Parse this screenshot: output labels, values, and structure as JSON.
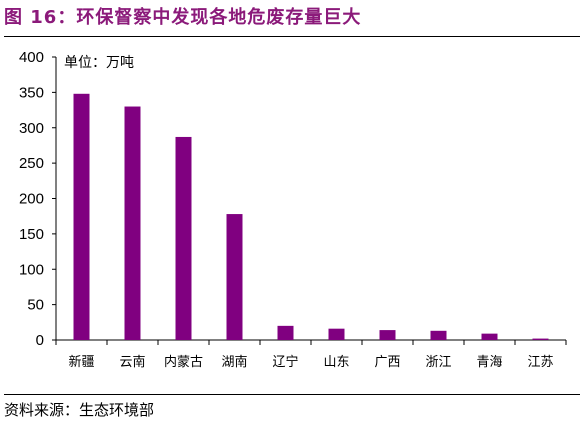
{
  "figure": {
    "title": "图 16：环保督察中发现各地危废存量巨大",
    "source": "资料来源：生态环境部"
  },
  "chart_data": {
    "type": "bar",
    "unit_label": "单位：万吨",
    "categories": [
      "新疆",
      "云南",
      "内蒙古",
      "湖南",
      "辽宁",
      "山东",
      "广西",
      "浙江",
      "青海",
      "江苏"
    ],
    "values": [
      348,
      330,
      287,
      178,
      20,
      16,
      14,
      13,
      9,
      2
    ],
    "ylim": [
      0,
      400
    ],
    "yticks": [
      0,
      50,
      100,
      150,
      200,
      250,
      300,
      350,
      400
    ],
    "bar_color": "#800080",
    "grid": false,
    "legend": "none"
  }
}
